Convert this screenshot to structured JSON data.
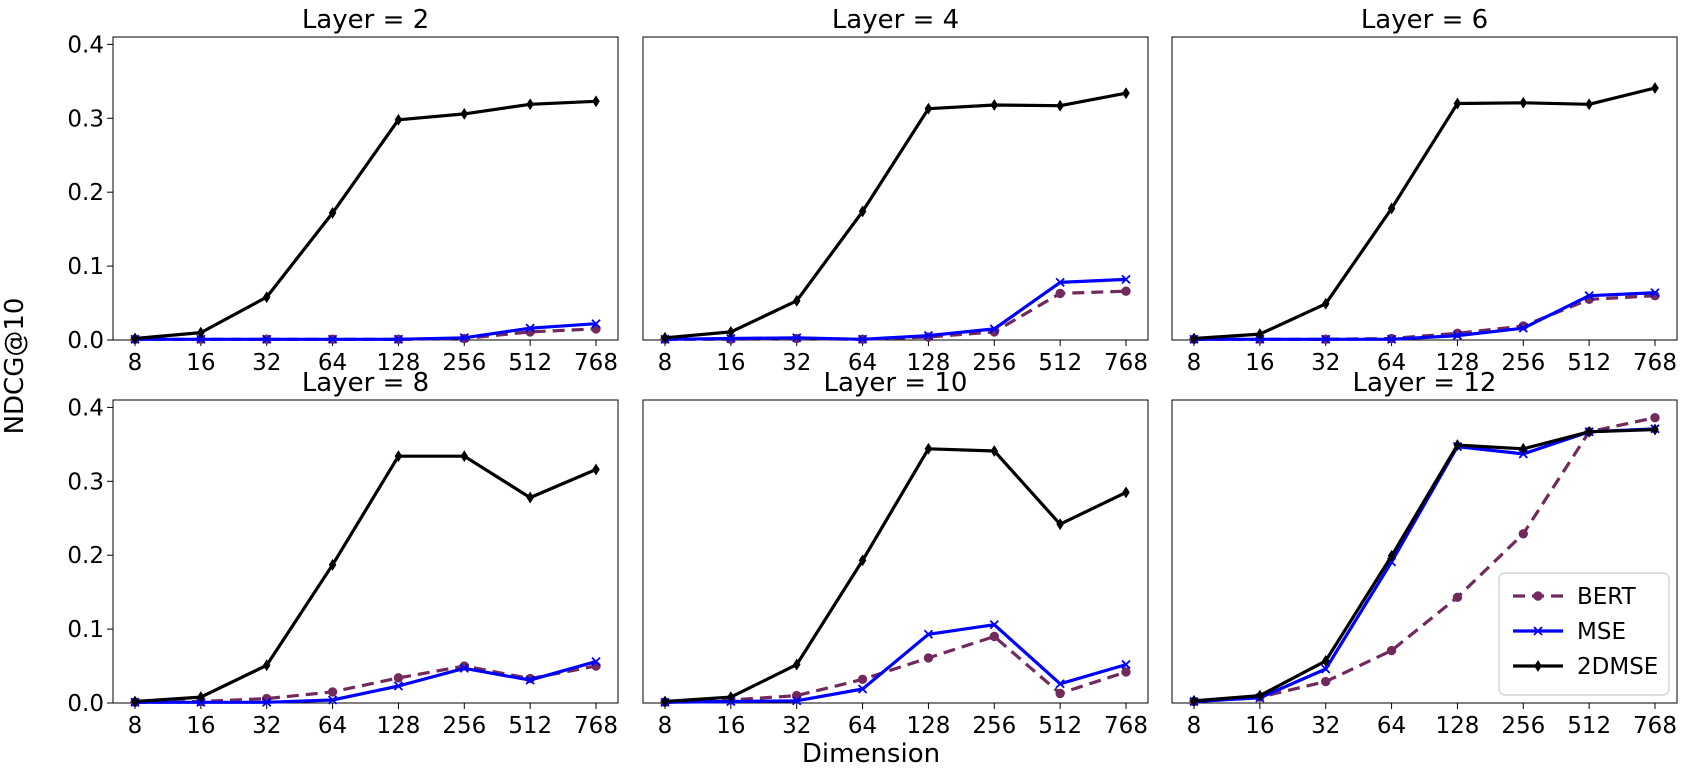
{
  "figure": {
    "ylabel": "NDCG@10",
    "xlabel": "Dimension"
  },
  "colors": {
    "BERT": "#722a5c",
    "MSE": "#0000ff",
    "2DMSE": "#000000"
  },
  "chart_data": [
    {
      "type": "line",
      "title": "Layer = 2",
      "categories": [
        "8",
        "16",
        "32",
        "64",
        "128",
        "256",
        "512",
        "768"
      ],
      "yticks": [
        "0.0",
        "0.1",
        "0.2",
        "0.3",
        "0.4"
      ],
      "ylim": [
        0,
        0.41
      ],
      "series": [
        {
          "name": "BERT",
          "values": [
            0.001,
            0.001,
            0.001,
            0.001,
            0.001,
            0.002,
            0.011,
            0.015
          ]
        },
        {
          "name": "MSE",
          "values": [
            0.001,
            0.001,
            0.001,
            0.001,
            0.001,
            0.003,
            0.016,
            0.022
          ]
        },
        {
          "name": "2DMSE",
          "values": [
            0.002,
            0.01,
            0.058,
            0.172,
            0.298,
            0.306,
            0.319,
            0.323
          ]
        }
      ]
    },
    {
      "type": "line",
      "title": "Layer = 4",
      "categories": [
        "8",
        "16",
        "32",
        "64",
        "128",
        "256",
        "512",
        "768"
      ],
      "yticks": [
        "0.0",
        "0.1",
        "0.2",
        "0.3",
        "0.4"
      ],
      "ylim": [
        0,
        0.41
      ],
      "series": [
        {
          "name": "BERT",
          "values": [
            0.001,
            0.001,
            0.002,
            0.001,
            0.004,
            0.011,
            0.063,
            0.066
          ]
        },
        {
          "name": "MSE",
          "values": [
            0.001,
            0.002,
            0.003,
            0.001,
            0.006,
            0.015,
            0.078,
            0.082
          ]
        },
        {
          "name": "2DMSE",
          "values": [
            0.003,
            0.011,
            0.053,
            0.174,
            0.313,
            0.318,
            0.317,
            0.334
          ]
        }
      ]
    },
    {
      "type": "line",
      "title": "Layer = 6",
      "categories": [
        "8",
        "16",
        "32",
        "64",
        "128",
        "256",
        "512",
        "768"
      ],
      "yticks": [
        "0.0",
        "0.1",
        "0.2",
        "0.3",
        "0.4"
      ],
      "ylim": [
        0,
        0.41
      ],
      "series": [
        {
          "name": "BERT",
          "values": [
            0.001,
            0.001,
            0.001,
            0.002,
            0.009,
            0.019,
            0.055,
            0.06
          ]
        },
        {
          "name": "MSE",
          "values": [
            0.001,
            0.001,
            0.001,
            0.001,
            0.006,
            0.016,
            0.06,
            0.064
          ]
        },
        {
          "name": "2DMSE",
          "values": [
            0.002,
            0.008,
            0.049,
            0.178,
            0.32,
            0.321,
            0.319,
            0.341
          ]
        }
      ]
    },
    {
      "type": "line",
      "title": "Layer = 8",
      "categories": [
        "8",
        "16",
        "32",
        "64",
        "128",
        "256",
        "512",
        "768"
      ],
      "yticks": [
        "0.0",
        "0.1",
        "0.2",
        "0.3",
        "0.4"
      ],
      "ylim": [
        0,
        0.41
      ],
      "series": [
        {
          "name": "BERT",
          "values": [
            0.001,
            0.002,
            0.006,
            0.015,
            0.034,
            0.05,
            0.033,
            0.05
          ]
        },
        {
          "name": "MSE",
          "values": [
            0.001,
            0.001,
            0.001,
            0.004,
            0.023,
            0.047,
            0.031,
            0.056
          ]
        },
        {
          "name": "2DMSE",
          "values": [
            0.002,
            0.008,
            0.051,
            0.187,
            0.334,
            0.334,
            0.278,
            0.316
          ]
        }
      ]
    },
    {
      "type": "line",
      "title": "Layer = 10",
      "categories": [
        "8",
        "16",
        "32",
        "64",
        "128",
        "256",
        "512",
        "768"
      ],
      "yticks": [
        "0.0",
        "0.1",
        "0.2",
        "0.3",
        "0.4"
      ],
      "ylim": [
        0,
        0.41
      ],
      "series": [
        {
          "name": "BERT",
          "values": [
            0.001,
            0.004,
            0.01,
            0.032,
            0.061,
            0.09,
            0.013,
            0.042
          ]
        },
        {
          "name": "MSE",
          "values": [
            0.001,
            0.002,
            0.003,
            0.019,
            0.093,
            0.106,
            0.026,
            0.052
          ]
        },
        {
          "name": "2DMSE",
          "values": [
            0.002,
            0.008,
            0.052,
            0.193,
            0.344,
            0.341,
            0.242,
            0.285
          ]
        }
      ]
    },
    {
      "type": "line",
      "title": "Layer = 12",
      "categories": [
        "8",
        "16",
        "32",
        "64",
        "128",
        "256",
        "512",
        "768"
      ],
      "yticks": [
        "0.0",
        "0.1",
        "0.2",
        "0.3",
        "0.4"
      ],
      "ylim": [
        0,
        0.41
      ],
      "legend": "lower-right",
      "series": [
        {
          "name": "BERT",
          "values": [
            0.002,
            0.008,
            0.029,
            0.071,
            0.143,
            0.229,
            0.367,
            0.386
          ]
        },
        {
          "name": "MSE",
          "values": [
            0.002,
            0.007,
            0.046,
            0.191,
            0.347,
            0.337,
            0.367,
            0.371
          ]
        },
        {
          "name": "2DMSE",
          "values": [
            0.003,
            0.01,
            0.057,
            0.199,
            0.349,
            0.344,
            0.367,
            0.37
          ]
        }
      ]
    }
  ]
}
